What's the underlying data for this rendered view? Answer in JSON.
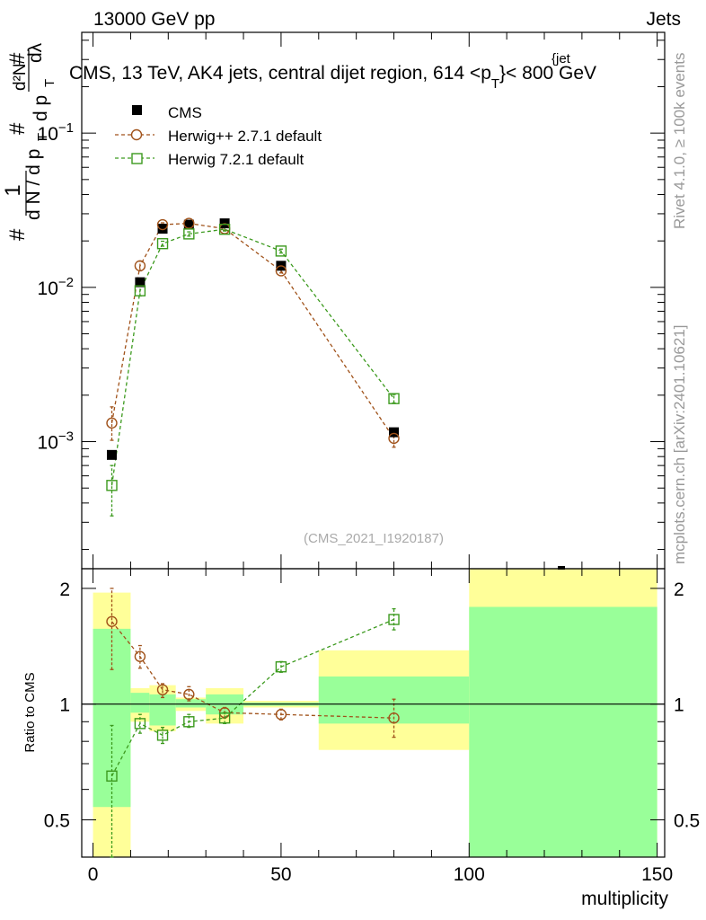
{
  "header": {
    "left": "13000 GeV pp",
    "right": "Jets",
    "title": "CMS, 13 TeV, AK4 jets, central dijet region, 614 <p",
    "title_sub": "T",
    "title_sup": "{jet",
    "title_end": "}< 800 GeV",
    "rivet_label": "Rivet 4.1.0, ≥ 100k events",
    "mcplots_label": "mcplots.cern.ch [arXiv:2401.10621]",
    "analysis_id": "(CMS_2021_I1920187)"
  },
  "y_axis_label": {
    "hash": "#",
    "one": "1",
    "dn": "d N / d p",
    "dn_sub": "T",
    "d2n": "d²N",
    "dpt": "d p",
    "dpt_sub": "T",
    "dlambda": "dλ"
  },
  "chart_data": {
    "type": "scatter",
    "xlabel": "multiplicity",
    "xlim": [
      -3,
      152
    ],
    "x_ticks": [
      "0",
      "50",
      "100",
      "150"
    ],
    "main": {
      "scale": "log",
      "ylim": [
        0.00015,
        0.45
      ],
      "y_ticks": [
        {
          "value": 0.001,
          "base": "10",
          "exp": "−3"
        },
        {
          "value": 0.01,
          "base": "10",
          "exp": "−2"
        },
        {
          "value": 0.1,
          "base": "10",
          "exp": "−1"
        }
      ]
    },
    "ratio": {
      "ylabel": "Ratio to CMS",
      "ylim": [
        0.4,
        2.25
      ],
      "y_ticks": [
        {
          "value": 0.5,
          "label": "0.5"
        },
        {
          "value": 1,
          "label": "1"
        },
        {
          "value": 2,
          "label": "2"
        }
      ],
      "bands": [
        {
          "x0": 0,
          "x1": 10,
          "yellow": [
            0.4,
            1.95
          ],
          "green": [
            0.54,
            1.57
          ]
        },
        {
          "x0": 10,
          "x1": 15,
          "yellow": [
            0.9,
            1.1
          ],
          "green": [
            0.95,
            1.07
          ]
        },
        {
          "x0": 15,
          "x1": 22,
          "yellow": [
            0.85,
            1.12
          ],
          "green": [
            0.88,
            1.06
          ]
        },
        {
          "x0": 22,
          "x1": 30,
          "yellow": [
            0.96,
            1.04
          ],
          "green": [
            0.98,
            1.03
          ]
        },
        {
          "x0": 30,
          "x1": 40,
          "yellow": [
            0.89,
            1.1
          ],
          "green": [
            0.94,
            1.06
          ]
        },
        {
          "x0": 40,
          "x1": 60,
          "yellow": [
            0.98,
            1.02
          ],
          "green": [
            0.99,
            1.01
          ]
        },
        {
          "x0": 60,
          "x1": 100,
          "yellow": [
            0.76,
            1.38
          ],
          "green": [
            0.89,
            1.18
          ]
        },
        {
          "x0": 100,
          "x1": 150,
          "yellow": [
            0.4,
            2.25
          ],
          "green": [
            0.4,
            1.79
          ]
        }
      ]
    },
    "series": [
      {
        "name": "CMS",
        "color": "#000000",
        "marker": "filled-square",
        "points": [
          {
            "x": 5,
            "y": 0.00082
          },
          {
            "x": 12.5,
            "y": 0.0108
          },
          {
            "x": 18.5,
            "y": 0.024
          },
          {
            "x": 25.5,
            "y": 0.0255
          },
          {
            "x": 35,
            "y": 0.026
          },
          {
            "x": 50,
            "y": 0.0138
          },
          {
            "x": 80,
            "y": 0.00115
          }
        ]
      },
      {
        "name": "Herwig++ 2.7.1 default",
        "color": "#a0521a",
        "marker": "open-circle",
        "points": [
          {
            "x": 5,
            "y": 0.00132,
            "lo": 0.00102,
            "hi": 0.00168
          },
          {
            "x": 12.5,
            "y": 0.0138,
            "lo": 0.0128,
            "hi": 0.0148
          },
          {
            "x": 18.5,
            "y": 0.0255,
            "lo": 0.0248,
            "hi": 0.0262
          },
          {
            "x": 25.5,
            "y": 0.026,
            "lo": 0.0253,
            "hi": 0.0267
          },
          {
            "x": 35,
            "y": 0.024,
            "lo": 0.0234,
            "hi": 0.0246
          },
          {
            "x": 50,
            "y": 0.0128,
            "lo": 0.0124,
            "hi": 0.0132
          },
          {
            "x": 80,
            "y": 0.00105,
            "lo": 0.00092,
            "hi": 0.00118
          }
        ],
        "ratio": [
          {
            "x": 5,
            "y": 1.64,
            "lo": 1.23,
            "hi": 2.0
          },
          {
            "x": 12.5,
            "y": 1.33,
            "lo": 1.24,
            "hi": 1.42
          },
          {
            "x": 18.5,
            "y": 1.09,
            "lo": 1.04,
            "hi": 1.13
          },
          {
            "x": 25.5,
            "y": 1.06,
            "lo": 1.02,
            "hi": 1.11
          },
          {
            "x": 35,
            "y": 0.95,
            "lo": 0.92,
            "hi": 0.98
          },
          {
            "x": 50,
            "y": 0.94,
            "lo": 0.91,
            "hi": 0.97
          },
          {
            "x": 80,
            "y": 0.92,
            "lo": 0.82,
            "hi": 1.03
          }
        ]
      },
      {
        "name": "Herwig 7.2.1 default",
        "color": "#3c9a1e",
        "marker": "open-square",
        "points": [
          {
            "x": 5,
            "y": 0.00052,
            "lo": 0.00033,
            "hi": 0.0007
          },
          {
            "x": 12.5,
            "y": 0.0095,
            "lo": 0.0088,
            "hi": 0.0102
          },
          {
            "x": 18.5,
            "y": 0.0192,
            "lo": 0.0185,
            "hi": 0.0199
          },
          {
            "x": 25.5,
            "y": 0.0222,
            "lo": 0.0215,
            "hi": 0.0229
          },
          {
            "x": 35,
            "y": 0.0238,
            "lo": 0.0232,
            "hi": 0.0244
          },
          {
            "x": 50,
            "y": 0.0172,
            "lo": 0.0167,
            "hi": 0.0177
          },
          {
            "x": 80,
            "y": 0.0019,
            "lo": 0.00178,
            "hi": 0.00202
          }
        ],
        "ratio": [
          {
            "x": 5,
            "y": 0.65,
            "lo": 0.4,
            "hi": 0.88
          },
          {
            "x": 12.5,
            "y": 0.89,
            "lo": 0.84,
            "hi": 0.94
          },
          {
            "x": 18.5,
            "y": 0.83,
            "lo": 0.79,
            "hi": 0.87
          },
          {
            "x": 25.5,
            "y": 0.9,
            "lo": 0.87,
            "hi": 0.94
          },
          {
            "x": 35,
            "y": 0.92,
            "lo": 0.89,
            "hi": 0.95
          },
          {
            "x": 50,
            "y": 1.25,
            "lo": 1.21,
            "hi": 1.29
          },
          {
            "x": 80,
            "y": 1.66,
            "lo": 1.56,
            "hi": 1.77
          }
        ]
      }
    ]
  }
}
